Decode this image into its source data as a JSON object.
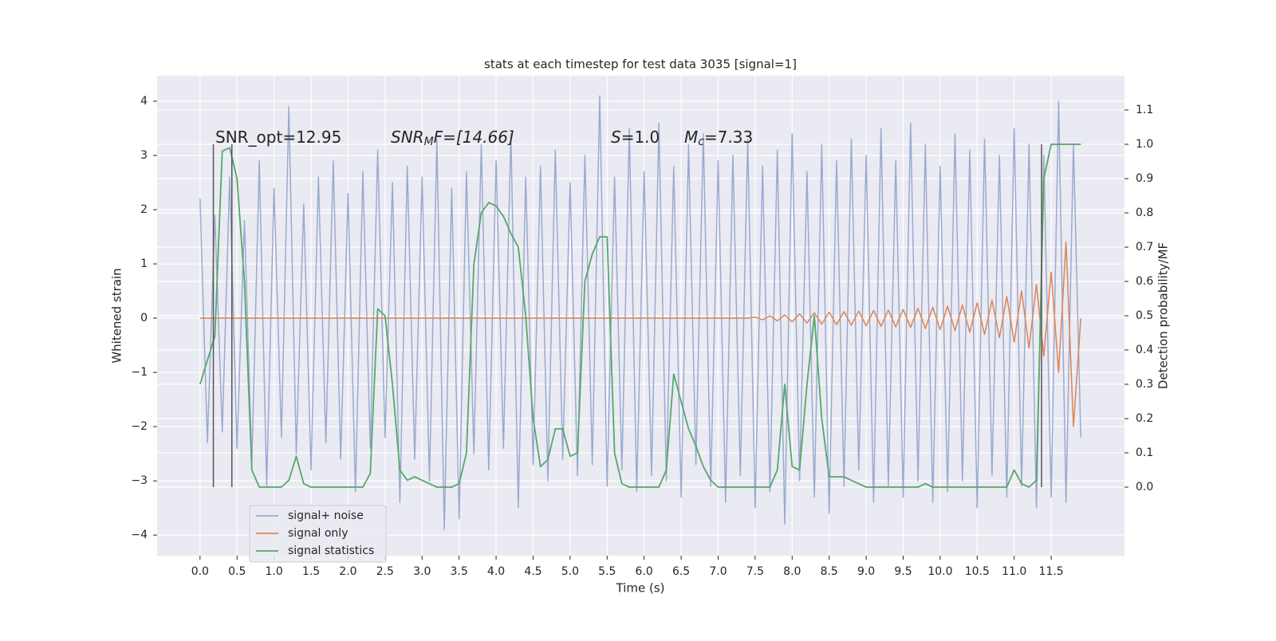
{
  "chart_data": {
    "type": "line",
    "title": "stats at each timestep for test data 3035 [signal=1]",
    "xlabel": "Time (s)",
    "ylabel": "Whitened strain",
    "y2label": "Detection probability/MF",
    "annotations": [
      {
        "main": "SNR_opt=12.95"
      },
      {
        "main": "SNR",
        "sub": "M",
        "rest": "F=[14.66]"
      },
      {
        "main": "S",
        "rest": "=1.0"
      },
      {
        "main": "M",
        "sub": "c",
        "rest": "=7.33"
      }
    ],
    "legend": "lower left",
    "grid": true,
    "xlim": [
      -0.58,
      12.49
    ],
    "ylim": [
      -4.38,
      4.47
    ],
    "y2lim": [
      -0.2,
      1.2
    ],
    "xticks": [
      {
        "value": 0,
        "label": "0.0"
      },
      0.5,
      {
        "value": 1,
        "label": "1.0"
      },
      1.5,
      {
        "value": 2,
        "label": "2.0"
      },
      2.5,
      {
        "value": 3,
        "label": "3.0"
      },
      3.5,
      {
        "value": 4,
        "label": "4.0"
      },
      4.5,
      {
        "value": 5,
        "label": "5.0"
      },
      5.5,
      {
        "value": 6,
        "label": "6.0"
      },
      6.5,
      {
        "value": 7,
        "label": "7.0"
      },
      7.5,
      {
        "value": 8,
        "label": "8.0"
      },
      8.5,
      {
        "value": 9,
        "label": "9.0"
      },
      9.5,
      {
        "value": 10,
        "label": "10.0"
      },
      10.5,
      {
        "value": 11,
        "label": "11.0"
      },
      11.5
    ],
    "yticks": [
      {
        "value": -4,
        "label": "−4"
      },
      {
        "value": -3,
        "label": "−3"
      },
      {
        "value": -2,
        "label": "−2"
      },
      {
        "value": -1,
        "label": "−1"
      },
      0,
      1,
      2,
      3,
      4
    ],
    "y2ticks": [
      {
        "value": 0,
        "label": "0.0"
      },
      0.1,
      0.2,
      0.3,
      0.4,
      0.5,
      0.6,
      0.7,
      0.8,
      0.9,
      {
        "value": 1,
        "label": "1.0"
      },
      1.1
    ],
    "vlines": [
      0.18,
      0.43,
      11.37
    ],
    "vline_span": [
      0,
      1
    ],
    "vline_color": "#555555",
    "x": [
      0,
      0.1,
      0.2,
      0.3,
      0.4,
      0.5,
      0.6,
      0.7,
      0.8,
      0.9,
      1,
      1.1,
      1.2,
      1.3,
      1.4,
      1.5,
      1.6,
      1.7,
      1.8,
      1.9,
      2,
      2.1,
      2.2,
      2.3,
      2.4,
      2.5,
      2.6,
      2.7,
      2.8,
      2.9,
      3,
      3.1,
      3.2,
      3.3,
      3.4,
      3.5,
      3.6,
      3.7,
      3.8,
      3.9,
      4,
      4.1,
      4.2,
      4.3,
      4.4,
      4.5,
      4.6,
      4.7,
      4.8,
      4.9,
      5,
      5.1,
      5.2,
      5.3,
      5.4,
      5.5,
      5.6,
      5.7,
      5.8,
      5.9,
      6,
      6.1,
      6.2,
      6.3,
      6.4,
      6.5,
      6.6,
      6.7,
      6.8,
      6.9,
      7,
      7.1,
      7.2,
      7.3,
      7.4,
      7.5,
      7.6,
      7.7,
      7.8,
      7.9,
      8,
      8.1,
      8.2,
      8.3,
      8.4,
      8.5,
      8.6,
      8.7,
      8.8,
      8.9,
      9,
      9.1,
      9.2,
      9.3,
      9.4,
      9.5,
      9.6,
      9.7,
      9.8,
      9.9,
      10,
      10.1,
      10.2,
      10.3,
      10.4,
      10.5,
      10.6,
      10.7,
      10.8,
      10.9,
      11,
      11.1,
      11.2,
      11.3,
      11.4,
      11.5,
      11.6,
      11.7,
      11.8,
      11.9
    ],
    "series": [
      {
        "name": "signal+ noise",
        "color": "#9aaad0",
        "values": [
          2.2,
          -2.3,
          1.9,
          -2.1,
          2.6,
          -2.4,
          1.8,
          -2.7,
          2.9,
          -3.1,
          2.4,
          -2.2,
          3.9,
          -2.5,
          2.1,
          -2.8,
          2.6,
          -2.3,
          2.9,
          -2.6,
          2.3,
          -3.2,
          2.7,
          -2.4,
          3.1,
          -2.2,
          2.5,
          -3.4,
          2.8,
          -2.6,
          2.6,
          -3.0,
          3.3,
          -3.9,
          2.4,
          -3.7,
          2.7,
          -2.5,
          3.2,
          -2.8,
          2.9,
          -2.4,
          3.4,
          -3.5,
          2.6,
          -2.7,
          2.8,
          -3.0,
          3.1,
          -2.6,
          2.5,
          -2.9,
          3.0,
          -2.7,
          4.1,
          -3.1,
          2.6,
          -2.8,
          3.5,
          -3.2,
          2.7,
          -2.9,
          3.6,
          -3.0,
          2.8,
          -3.3,
          3.2,
          -2.7,
          3.4,
          -3.1,
          2.9,
          -3.4,
          3.0,
          -2.9,
          3.3,
          -3.5,
          2.8,
          -3.2,
          3.1,
          -3.8,
          3.4,
          -3.0,
          2.7,
          -3.3,
          3.2,
          -3.6,
          2.9,
          -3.1,
          3.3,
          -2.8,
          3.0,
          -3.4,
          3.5,
          -3.1,
          2.9,
          -3.3,
          3.6,
          -3.0,
          3.2,
          -3.4,
          2.8,
          -3.2,
          3.4,
          -3.0,
          3.1,
          -3.5,
          3.3,
          -2.9,
          3.0,
          -3.3,
          3.5,
          -3.1,
          3.2,
          -3.5,
          3.0,
          -3.3,
          4.0,
          -3.4,
          3.2,
          -2.2
        ]
      },
      {
        "name": "signal only",
        "color": "#dd8452",
        "values": [
          0,
          0,
          0,
          0,
          0,
          0,
          0,
          0,
          0,
          0,
          0,
          0,
          0,
          0,
          0,
          0,
          0,
          0,
          0,
          0,
          0,
          0,
          0,
          0,
          0,
          0,
          0,
          0,
          0,
          0,
          0,
          0,
          0,
          0,
          0,
          0,
          0,
          0,
          0,
          0,
          0,
          0,
          0,
          0,
          0,
          0,
          0,
          0,
          0,
          0,
          0,
          0,
          0,
          0,
          0,
          0,
          0,
          0,
          0,
          0,
          0,
          0,
          0,
          0,
          0,
          0,
          0,
          0,
          0,
          0,
          0,
          0,
          0,
          0,
          0,
          0.02,
          -0.03,
          0.04,
          -0.05,
          0.06,
          -0.07,
          0.08,
          -0.09,
          0.1,
          -0.11,
          0.11,
          -0.12,
          0.12,
          -0.13,
          0.13,
          -0.14,
          0.14,
          -0.15,
          0.15,
          -0.16,
          0.16,
          -0.17,
          0.18,
          -0.19,
          0.2,
          -0.21,
          0.22,
          -0.23,
          0.24,
          -0.26,
          0.28,
          -0.3,
          0.33,
          -0.36,
          0.4,
          -0.44,
          0.5,
          -0.55,
          0.62,
          -0.7,
          0.85,
          -1.0,
          1.4,
          -2.0,
          0
        ]
      },
      {
        "name": "signal statistics",
        "color": "#55a868",
        "axis": "y2",
        "values": [
          0.3,
          0.37,
          0.44,
          0.98,
          0.99,
          0.9,
          0.6,
          0.05,
          0,
          0,
          0,
          0,
          0.02,
          0.09,
          0.01,
          0,
          0,
          0,
          0,
          0,
          0,
          0,
          0,
          0.04,
          0.52,
          0.5,
          0.3,
          0.05,
          0.02,
          0.03,
          0.02,
          0.01,
          0,
          0,
          0,
          0.01,
          0.1,
          0.65,
          0.8,
          0.83,
          0.82,
          0.79,
          0.74,
          0.7,
          0.5,
          0.2,
          0.06,
          0.08,
          0.17,
          0.17,
          0.09,
          0.1,
          0.6,
          0.68,
          0.73,
          0.73,
          0.1,
          0.01,
          0,
          0,
          0,
          0,
          0,
          0.05,
          0.33,
          0.25,
          0.17,
          0.12,
          0.06,
          0.02,
          0,
          0,
          0,
          0,
          0,
          0,
          0,
          0,
          0.05,
          0.3,
          0.06,
          0.05,
          0.3,
          0.5,
          0.2,
          0.03,
          0.03,
          0.03,
          0.02,
          0.01,
          0,
          0,
          0,
          0,
          0,
          0,
          0,
          0,
          0.01,
          0,
          0,
          0,
          0,
          0,
          0,
          0,
          0,
          0,
          0,
          0,
          0.05,
          0.01,
          0,
          0.02,
          0.9,
          1.0,
          1.0,
          1.0,
          1.0,
          1.0
        ]
      }
    ]
  }
}
